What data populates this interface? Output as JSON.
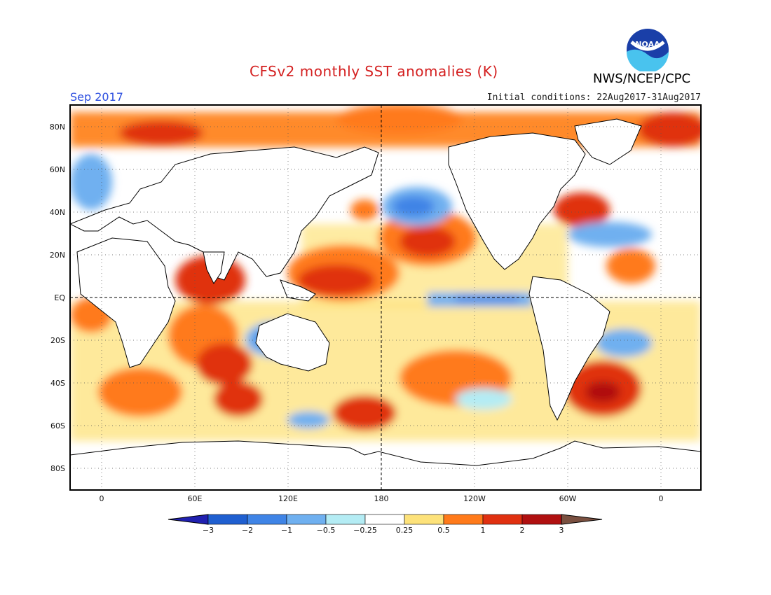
{
  "header": {
    "title": "CFSv2 monthly SST anomalies (K)",
    "org": "NWS/NCEP/CPC",
    "logo_text": "NOAA",
    "month": "Sep 2017",
    "initial_conditions": "Initial conditions: 22Aug2017-31Aug2017"
  },
  "map": {
    "lat_labels": [
      "80N",
      "60N",
      "40N",
      "20N",
      "EQ",
      "20S",
      "40S",
      "60S",
      "80S"
    ],
    "lon_labels": [
      "0",
      "60E",
      "120E",
      "180",
      "120W",
      "60W",
      "0"
    ]
  },
  "colorbar": {
    "labels": [
      "−3",
      "−2",
      "−1",
      "−0.5",
      "−0.25",
      "0.25",
      "0.5",
      "1",
      "2",
      "3"
    ],
    "colors": [
      "#2020b0",
      "#1f5fd0",
      "#3f84e6",
      "#6fb0f0",
      "#b4ecf4",
      "#ffffff",
      "#fde27a",
      "#ff7a1a",
      "#e03010",
      "#b01010",
      "#7a5040"
    ]
  },
  "colors": {
    "land": "#ffffff",
    "title_red": "#d42020",
    "month_blue": "#2d4fe0"
  }
}
